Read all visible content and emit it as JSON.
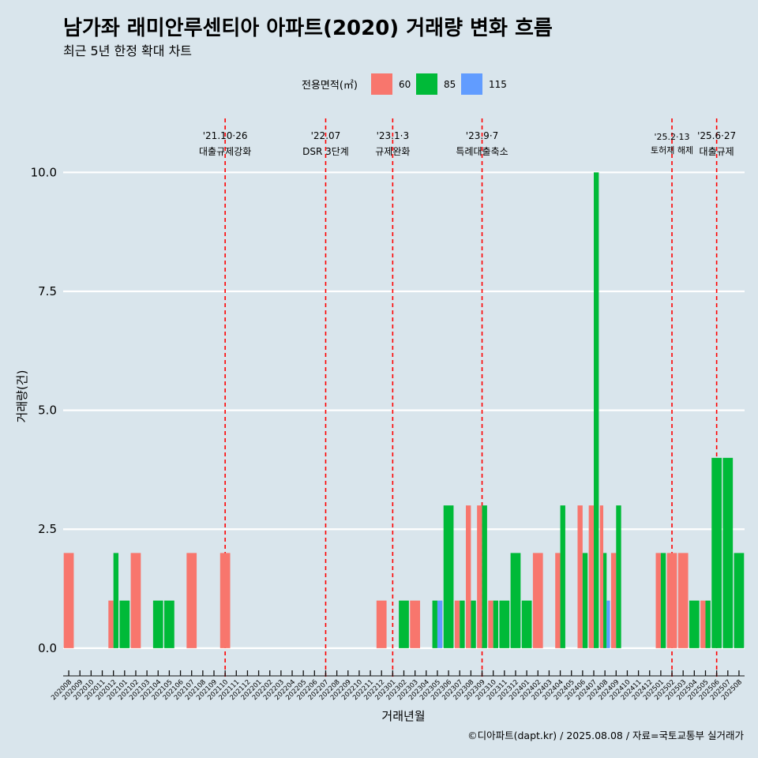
{
  "chart_data": {
    "type": "bar",
    "title": "남가좌 래미안루센티아 아파트(2020) 거래량 변화 흐름",
    "subtitle": "최근 5년 한정 확대 차트",
    "xlabel": "거래년월",
    "ylabel": "거래량(건)",
    "caption": "©디아파트(dapt.kr) / 2025.08.08 / 자료=국토교통부 실거래가",
    "legend": {
      "title": "전용면적(㎡)",
      "position": "top",
      "entries": [
        {
          "label": "60",
          "color": "#f8766d"
        },
        {
          "label": "85",
          "color": "#00ba38"
        },
        {
          "label": "115",
          "color": "#619cff"
        }
      ]
    },
    "ylim": [
      -0.45,
      11.3
    ],
    "yticks": [
      "0.0",
      "2.5",
      "5.0",
      "7.5",
      "10.0"
    ],
    "categories": [
      "202008",
      "202009",
      "202010",
      "202011",
      "202012",
      "202101",
      "202102",
      "202103",
      "202104",
      "202105",
      "202106",
      "202107",
      "202108",
      "202109",
      "202110",
      "202111",
      "202112",
      "202201",
      "202202",
      "202203",
      "202204",
      "202205",
      "202206",
      "202207",
      "202208",
      "202209",
      "202210",
      "202211",
      "202212",
      "202301",
      "202302",
      "202303",
      "202304",
      "202305",
      "202306",
      "202307",
      "202308",
      "202309",
      "202310",
      "202311",
      "202312",
      "202401",
      "202402",
      "202403",
      "202404",
      "202405",
      "202406",
      "202407",
      "202408",
      "202409",
      "202410",
      "202411",
      "202412",
      "202501",
      "202502",
      "202503",
      "202504",
      "202505",
      "202506",
      "202507",
      "202508"
    ],
    "series": [
      {
        "name": "60",
        "color": "#f8766d",
        "values": [
          2,
          0,
          0,
          0,
          1,
          0,
          2,
          0,
          0,
          0,
          0,
          2,
          0,
          0,
          2,
          0,
          0,
          0,
          0,
          0,
          0,
          0,
          0,
          0,
          0,
          0,
          0,
          0,
          1,
          0,
          0,
          1,
          0,
          0,
          0,
          1,
          3,
          3,
          1,
          0,
          0,
          0,
          2,
          0,
          2,
          0,
          3,
          3,
          3,
          2,
          0,
          0,
          0,
          2,
          2,
          2,
          0,
          1,
          0,
          0,
          0
        ]
      },
      {
        "name": "85",
        "color": "#00ba38",
        "values": [
          0,
          0,
          0,
          0,
          2,
          1,
          0,
          0,
          1,
          1,
          0,
          0,
          0,
          0,
          0,
          0,
          0,
          0,
          0,
          0,
          0,
          0,
          0,
          0,
          0,
          0,
          0,
          0,
          0,
          0,
          1,
          0,
          0,
          1,
          3,
          1,
          1,
          3,
          1,
          1,
          2,
          1,
          0,
          0,
          3,
          0,
          2,
          10,
          2,
          3,
          0,
          0,
          0,
          2,
          0,
          0,
          1,
          1,
          4,
          4,
          2
        ]
      },
      {
        "name": "115",
        "color": "#619cff",
        "values": [
          0,
          0,
          0,
          0,
          0,
          0,
          0,
          0,
          0,
          0,
          0,
          0,
          0,
          0,
          0,
          0,
          0,
          0,
          0,
          0,
          0,
          0,
          0,
          0,
          0,
          0,
          0,
          0,
          0,
          0,
          0,
          0,
          0,
          1,
          0,
          0,
          0,
          0,
          0,
          0,
          0,
          0,
          0,
          0,
          0,
          0,
          0,
          0,
          1,
          0,
          0,
          0,
          0,
          0,
          0,
          0,
          0,
          0,
          0,
          0,
          0
        ]
      }
    ],
    "events": [
      {
        "pos": 14.5,
        "date": "'21.10·26",
        "label": "대출규제강화"
      },
      {
        "pos": 23.5,
        "date": "'22.07",
        "label": "DSR 3단계"
      },
      {
        "pos": 29.5,
        "date": "'23.1·3",
        "label": "규제완화"
      },
      {
        "pos": 37.5,
        "date": "'23.9·7",
        "label": "특례대출축소"
      },
      {
        "pos": 54.5,
        "date": "'25.2·13",
        "label": "토허제 해제",
        "small": true
      },
      {
        "pos": 58.5,
        "date": "'25.6·27",
        "label": "대출규제"
      }
    ]
  }
}
